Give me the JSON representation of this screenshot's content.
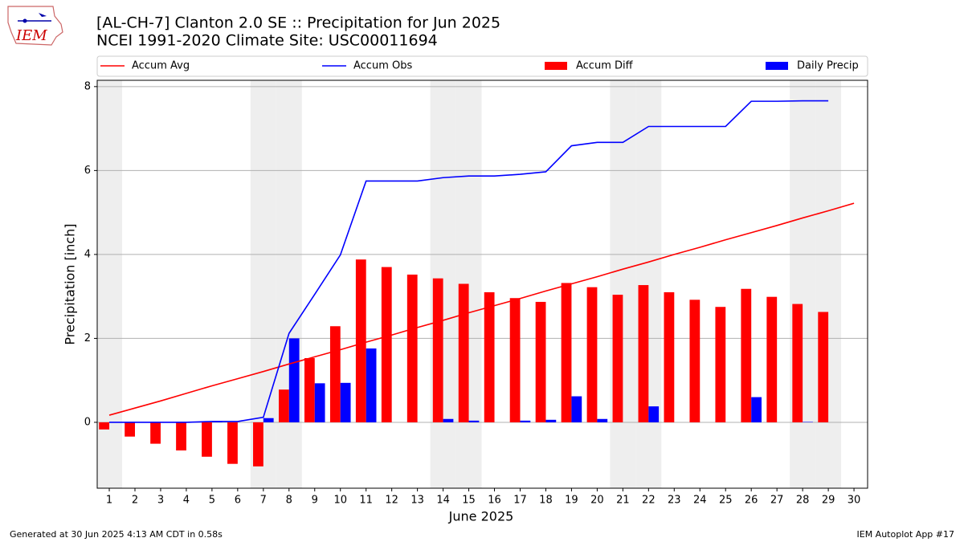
{
  "chart_data": {
    "type": "bar_line",
    "title": "[AL-CH-7] Clanton 2.0 SE :: Precipitation for Jun 2025",
    "subtitle": "NCEI 1991-2020 Climate Site: USC00011694",
    "logo_text": "IEM",
    "x_label": "June 2025",
    "y_label": "Precipitation [inch]",
    "footer_left": "Generated at 30 Jun 2025 4:13 AM CDT in 0.58s",
    "footer_right": "IEM Autoplot App #17",
    "x": [
      1,
      2,
      3,
      4,
      5,
      6,
      7,
      8,
      9,
      10,
      11,
      12,
      13,
      14,
      15,
      16,
      17,
      18,
      19,
      20,
      21,
      22,
      23,
      24,
      25,
      26,
      27,
      28,
      29,
      30
    ],
    "xlim": [
      0.53,
      30.53
    ],
    "xticks": [
      1,
      2,
      3,
      4,
      5,
      6,
      7,
      8,
      9,
      10,
      11,
      12,
      13,
      14,
      15,
      16,
      17,
      18,
      19,
      20,
      21,
      22,
      23,
      24,
      25,
      26,
      27,
      28,
      29,
      30
    ],
    "ylim": [
      -1.57,
      8.15
    ],
    "yticks": [
      0,
      2,
      4,
      6,
      8
    ],
    "grid": true,
    "shaded_days": [
      1,
      7,
      8,
      14,
      15,
      21,
      22,
      28,
      29
    ],
    "shade_color": "#eeeeee",
    "series": [
      {
        "name": "Accum Avg",
        "kind": "line",
        "color": "#ff0000",
        "values": [
          0.17,
          0.34,
          0.51,
          0.69,
          0.87,
          1.04,
          1.21,
          1.39,
          1.56,
          1.73,
          1.91,
          2.08,
          2.26,
          2.43,
          2.61,
          2.78,
          2.95,
          3.13,
          3.3,
          3.47,
          3.65,
          3.82,
          4.0,
          4.17,
          4.35,
          4.52,
          4.69,
          4.87,
          5.04,
          5.22
        ]
      },
      {
        "name": "Accum Obs",
        "kind": "line",
        "color": "#0000ff",
        "values": [
          0,
          0,
          0,
          0,
          0.02,
          0.02,
          0.12,
          2.12,
          3.05,
          3.99,
          5.75,
          5.75,
          5.75,
          5.83,
          5.87,
          5.87,
          5.91,
          5.97,
          6.59,
          6.67,
          6.67,
          7.05,
          7.05,
          7.05,
          7.05,
          7.65,
          7.65,
          7.66,
          7.66,
          null
        ]
      },
      {
        "name": "Accum Diff",
        "kind": "bar",
        "offset": "left",
        "color": "#ff0000",
        "values": [
          -0.17,
          -0.34,
          -0.51,
          -0.67,
          -0.82,
          -0.99,
          -1.05,
          0.78,
          1.53,
          2.29,
          3.88,
          3.7,
          3.52,
          3.43,
          3.3,
          3.1,
          2.96,
          2.87,
          3.32,
          3.22,
          3.04,
          3.27,
          3.1,
          2.92,
          2.75,
          3.18,
          2.99,
          2.82,
          2.63,
          null
        ]
      },
      {
        "name": "Daily Precip",
        "kind": "bar",
        "offset": "right",
        "color": "#0000ff",
        "values": [
          0,
          0,
          0,
          0,
          0.02,
          0,
          0.1,
          2.0,
          0.93,
          0.94,
          1.76,
          0,
          0,
          0.08,
          0.04,
          0,
          0.04,
          0.06,
          0.62,
          0.08,
          0,
          0.38,
          0,
          0,
          0,
          0.6,
          0,
          0.01,
          0,
          null
        ]
      }
    ]
  }
}
